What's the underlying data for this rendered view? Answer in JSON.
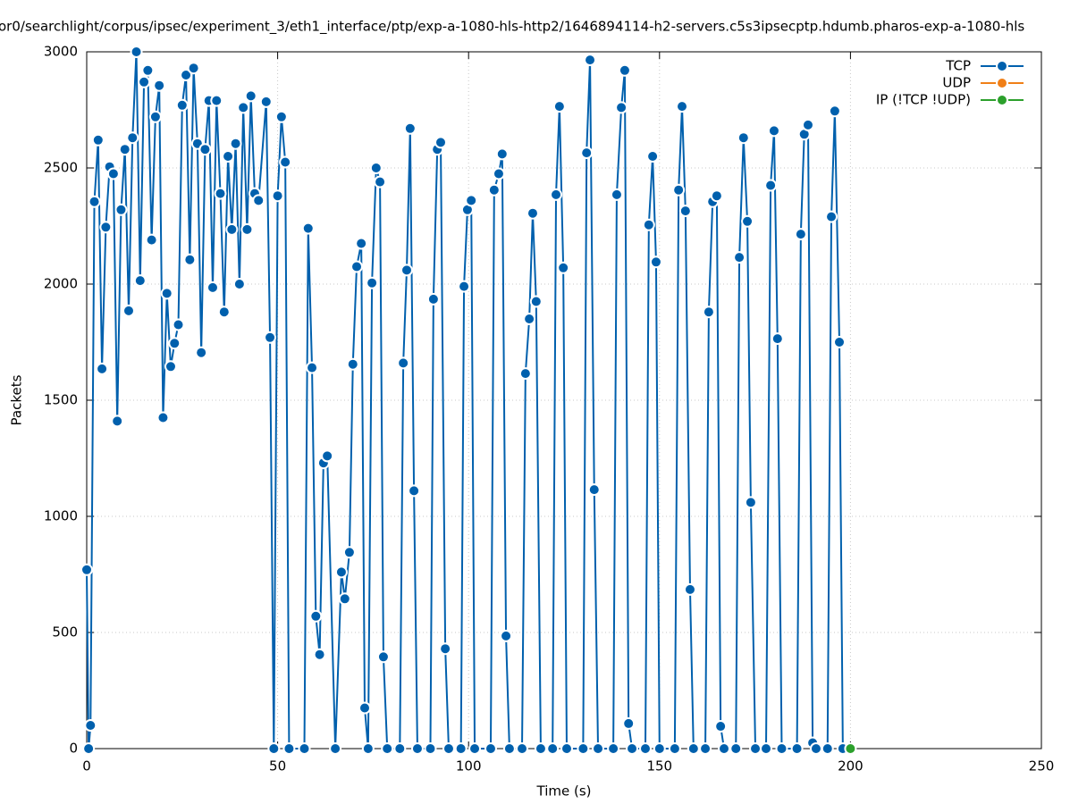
{
  "chart_data": {
    "type": "line",
    "title": "or0/searchlight/corpus/ipsec/experiment_3/eth1_interface/ptp/exp-a-1080-hls-http2/1646894114-h2-servers.c5s3ipsecptp.hdumb.pharos-exp-a-1080-hls",
    "x_label": "Time (s)",
    "y_label": "Packets",
    "xlim": [
      0,
      250
    ],
    "xticks": [
      0,
      50,
      100,
      150,
      200,
      250
    ],
    "ylim": [
      0,
      3000
    ],
    "yticks": [
      0,
      500,
      1000,
      1500,
      2000,
      2500,
      3000
    ],
    "grid": true,
    "legend": "top-right",
    "series": [
      {
        "name": "TCP",
        "color": "#0060ad",
        "x": [
          0,
          0.5,
          1,
          2,
          3,
          4,
          5,
          6,
          7,
          8,
          9,
          10,
          11,
          12,
          13,
          14,
          15,
          16,
          17,
          18,
          19,
          20,
          21,
          22,
          23,
          24,
          25,
          26,
          27,
          28,
          29,
          30,
          31,
          32,
          33,
          34,
          35,
          36,
          37,
          38,
          39,
          40,
          41,
          42,
          43,
          44,
          45,
          47,
          48,
          49,
          50,
          51,
          52,
          53,
          57,
          58,
          59,
          60,
          61,
          62,
          63,
          65.1,
          66.7,
          67.6,
          68.8,
          69.7,
          70.7,
          71.9,
          72.8,
          73.7,
          74.7,
          75.8,
          76.8,
          77.7,
          78.7,
          82,
          82.9,
          83.8,
          84.7,
          85.7,
          86.6,
          90,
          90.8,
          91.8,
          92.7,
          93.9,
          94.8,
          98,
          98.8,
          99.7,
          100.7,
          101.6,
          105.8,
          106.7,
          107.9,
          108.8,
          109.8,
          110.7,
          114,
          114.9,
          115.9,
          116.8,
          117.7,
          118.9,
          122,
          122.9,
          123.8,
          124.8,
          125.7,
          130,
          130.9,
          131.8,
          132.9,
          133.9,
          137.9,
          138.8,
          140,
          140.9,
          141.9,
          142.8,
          146.3,
          147.2,
          148.2,
          149.1,
          150,
          154,
          155,
          155.9,
          156.8,
          158,
          158.9,
          162,
          162.9,
          163.9,
          165,
          166,
          166.9,
          170,
          170.9,
          172,
          173,
          173.9,
          175.1,
          177.9,
          179.1,
          180,
          180.9,
          182,
          186,
          187,
          187.9,
          188.9,
          190.1,
          191,
          194,
          195,
          195.9,
          197.1,
          198
        ],
        "values": [
          770,
          0,
          100,
          2355,
          2620,
          1635,
          2245,
          2505,
          2475,
          1410,
          2320,
          2580,
          1885,
          2630,
          3000,
          2015,
          2870,
          2920,
          2190,
          2720,
          2855,
          1425,
          1960,
          1645,
          1745,
          1825,
          2770,
          2900,
          2105,
          2930,
          2605,
          1705,
          2580,
          2790,
          1985,
          2790,
          2390,
          1880,
          2550,
          2235,
          2605,
          2000,
          2760,
          2235,
          2810,
          2390,
          2360,
          2785,
          1770,
          0,
          2380,
          2720,
          2525,
          0,
          0,
          2240,
          1640,
          570,
          405,
          1230,
          1260,
          0,
          760,
          645,
          845,
          1655,
          2075,
          2175,
          175,
          0,
          2005,
          2500,
          2440,
          395,
          0,
          0,
          1660,
          2060,
          2670,
          1110,
          0,
          0,
          1935,
          2580,
          2610,
          430,
          0,
          0,
          1990,
          2320,
          2360,
          0,
          0,
          2405,
          2475,
          2560,
          485,
          0,
          0,
          1615,
          1850,
          2305,
          1925,
          0,
          0,
          2385,
          2765,
          2070,
          0,
          0,
          2565,
          2965,
          1115,
          0,
          0,
          2385,
          2760,
          2920,
          108,
          0,
          0,
          2255,
          2550,
          2095,
          0,
          0,
          2405,
          2765,
          2315,
          685,
          0,
          0,
          1880,
          2355,
          2380,
          96,
          0,
          0,
          2115,
          2630,
          2270,
          1060,
          0,
          0,
          2425,
          2660,
          1765,
          0,
          0,
          2215,
          2645,
          2685,
          25,
          0,
          0,
          2290,
          2745,
          1750,
          0
        ]
      },
      {
        "name": "UDP",
        "color": "#f07f17",
        "x": [],
        "values": []
      },
      {
        "name": "IP (!TCP  !UDP)",
        "color": "#2ca02c",
        "x": [
          200
        ],
        "values": [
          0
        ]
      }
    ]
  }
}
